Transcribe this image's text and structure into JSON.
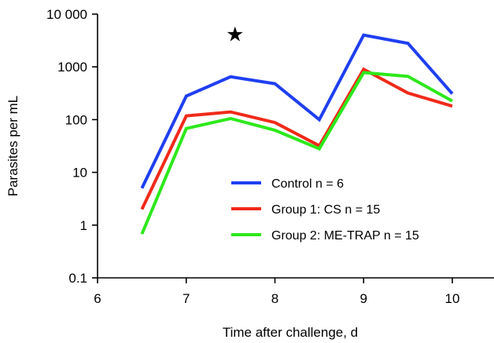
{
  "chart_data": {
    "type": "line",
    "xlabel": "Time after challenge, d",
    "ylabel": "Parasites per mL",
    "xlim": [
      6,
      10.5
    ],
    "ylim": [
      0.1,
      10000
    ],
    "yscale": "log",
    "x_ticks": [
      6,
      7,
      8,
      9,
      10
    ],
    "x_tick_labels": [
      "6",
      "7",
      "8",
      "9",
      "10"
    ],
    "y_ticks": [
      0.1,
      1,
      10,
      100,
      1000,
      10000
    ],
    "y_tick_labels": [
      "0.1",
      "1",
      "10",
      "100",
      "1000",
      "10 000"
    ],
    "grid": false,
    "legend_position": "center-right",
    "x": [
      6.5,
      7,
      7.5,
      8,
      8.5,
      9,
      9.5,
      10
    ],
    "series": [
      {
        "name": "Control n = 6",
        "color": "#1f3ff0",
        "values": [
          5,
          280,
          650,
          480,
          100,
          4000,
          2800,
          310
        ]
      },
      {
        "name": "Group 1: CS n = 15",
        "color": "#f02a1a",
        "values": [
          2,
          118,
          140,
          88,
          32,
          900,
          320,
          180
        ]
      },
      {
        "name": "Group 2: ME-TRAP n = 15",
        "color": "#2ee81c",
        "values": [
          0.68,
          68,
          105,
          63,
          28,
          780,
          660,
          225
        ]
      }
    ],
    "annotations": [
      {
        "symbol": "★",
        "x": 7.55,
        "y": 4200
      }
    ]
  }
}
